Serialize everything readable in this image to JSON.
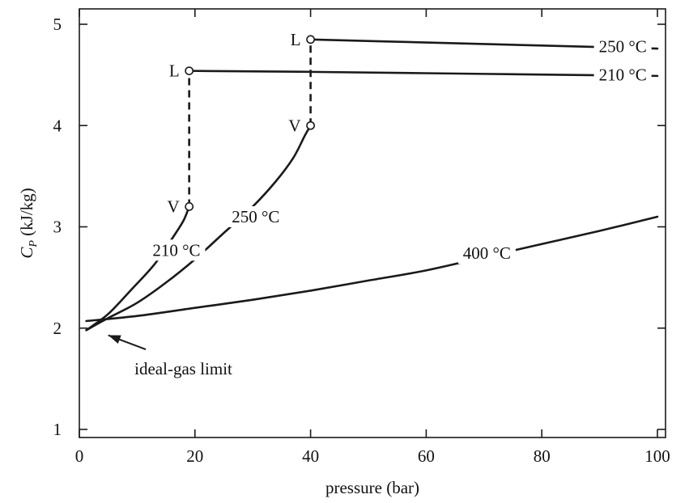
{
  "chart_data": {
    "type": "line",
    "xlabel": "pressure (bar)",
    "ylabel_main": "C",
    "ylabel_sub": "P",
    "ylabel_units": " (kJ/kg)",
    "xlim": [
      0,
      100
    ],
    "ylim": [
      1,
      5
    ],
    "xticks": [
      "0",
      "20",
      "40",
      "60",
      "80",
      "100"
    ],
    "yticks": [
      "1",
      "2",
      "3",
      "4",
      "5"
    ],
    "grid": false,
    "series": [
      {
        "name": "210 °C",
        "phase": "vapor",
        "points": [
          [
            1.2,
            1.98
          ],
          [
            5,
            2.14
          ],
          [
            9,
            2.38
          ],
          [
            13,
            2.63
          ],
          [
            16,
            2.88
          ],
          [
            18,
            3.06
          ],
          [
            19,
            3.2
          ]
        ]
      },
      {
        "name": "210 °C",
        "phase": "liquid",
        "points": [
          [
            19,
            4.54
          ],
          [
            40,
            4.53
          ],
          [
            70,
            4.51
          ],
          [
            100,
            4.49
          ]
        ]
      },
      {
        "name": "250 °C",
        "phase": "vapor",
        "points": [
          [
            1.2,
            1.98
          ],
          [
            5,
            2.1
          ],
          [
            10,
            2.25
          ],
          [
            15,
            2.45
          ],
          [
            20,
            2.68
          ],
          [
            25,
            2.94
          ],
          [
            30,
            3.2
          ],
          [
            34,
            3.45
          ],
          [
            37,
            3.68
          ],
          [
            39,
            3.9
          ],
          [
            40,
            4.0
          ]
        ]
      },
      {
        "name": "250 °C",
        "phase": "liquid",
        "points": [
          [
            40,
            4.85
          ],
          [
            60,
            4.82
          ],
          [
            80,
            4.79
          ],
          [
            100,
            4.76
          ]
        ]
      },
      {
        "name": "400 °C",
        "phase": "vapor",
        "points": [
          [
            1.2,
            2.07
          ],
          [
            10,
            2.12
          ],
          [
            20,
            2.2
          ],
          [
            30,
            2.28
          ],
          [
            40,
            2.37
          ],
          [
            50,
            2.47
          ],
          [
            60,
            2.57
          ],
          [
            70,
            2.7
          ],
          [
            80,
            2.83
          ],
          [
            90,
            2.96
          ],
          [
            100,
            3.1
          ]
        ]
      }
    ],
    "phase_transitions": [
      {
        "x": 19,
        "y_vapor": 3.2,
        "y_liquid": 4.54
      },
      {
        "x": 40,
        "y_vapor": 4.0,
        "y_liquid": 4.85
      }
    ],
    "point_labels": [
      {
        "text": "L",
        "x": 19,
        "y": 4.54,
        "side": "left"
      },
      {
        "text": "V",
        "x": 19,
        "y": 3.2,
        "side": "left"
      },
      {
        "text": "L",
        "x": 40,
        "y": 4.85,
        "side": "left"
      },
      {
        "text": "V",
        "x": 40,
        "y": 4.0,
        "side": "left"
      }
    ],
    "series_labels": [
      {
        "text": "250 °C",
        "x": 94,
        "y": 4.78
      },
      {
        "text": "210 °C",
        "x": 94,
        "y": 4.5
      },
      {
        "text": "250 °C",
        "x": 30.5,
        "y": 3.1
      },
      {
        "text": "210 °C",
        "x": 16.8,
        "y": 2.77
      },
      {
        "text": "400 °C",
        "x": 70.5,
        "y": 2.74
      }
    ],
    "annotation": {
      "text": "ideal-gas limit",
      "text_x": 18,
      "text_y": 1.6,
      "arrow_from": [
        11.5,
        1.79
      ],
      "arrow_to": [
        5,
        1.93
      ]
    }
  }
}
